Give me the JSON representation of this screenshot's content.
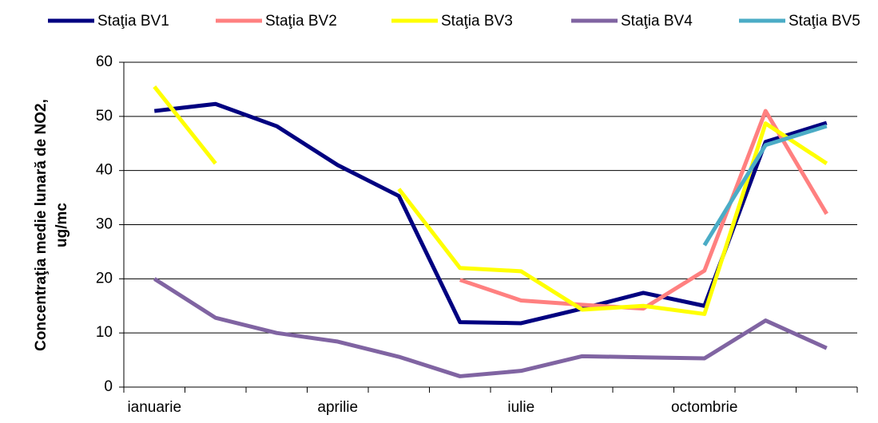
{
  "chart_data": {
    "type": "line",
    "categories": [
      "ianuarie",
      null,
      null,
      "aprilie",
      null,
      null,
      "iulie",
      null,
      null,
      "octombrie",
      null,
      null
    ],
    "series": [
      {
        "name": "Staţia BV1",
        "color": "#000080",
        "values": [
          51,
          52.3,
          48.2,
          41,
          35.3,
          12,
          11.8,
          14.5,
          17.4,
          15,
          45.3,
          48.8
        ]
      },
      {
        "name": "Staţia BV2",
        "color": "#ff8080",
        "values": [
          null,
          null,
          null,
          null,
          null,
          19.8,
          16,
          15.2,
          14.5,
          21.5,
          51,
          32
        ]
      },
      {
        "name": "Staţia BV3",
        "color": "#ffff00",
        "values": [
          55.5,
          41.3,
          null,
          null,
          36.6,
          22,
          21.4,
          14.3,
          15,
          13.5,
          48.7,
          41.3
        ]
      },
      {
        "name": "Staţia BV4",
        "color": "#8064a2",
        "values": [
          20,
          12.8,
          10,
          8.4,
          5.6,
          2,
          3,
          5.7,
          5.5,
          5.3,
          12.3,
          7.2
        ]
      },
      {
        "name": "Staţia BV5",
        "color": "#4bacc6",
        "values": [
          null,
          null,
          null,
          null,
          null,
          null,
          null,
          null,
          null,
          26.2,
          44.7,
          48.2
        ]
      }
    ],
    "ylabel": [
      "Concentraţia medie  lunară de NO2,",
      "ug/mc"
    ],
    "ylim": [
      0,
      60
    ],
    "yticks": [
      0,
      10,
      20,
      30,
      40,
      50,
      60
    ],
    "grid": true,
    "legend": "top"
  }
}
